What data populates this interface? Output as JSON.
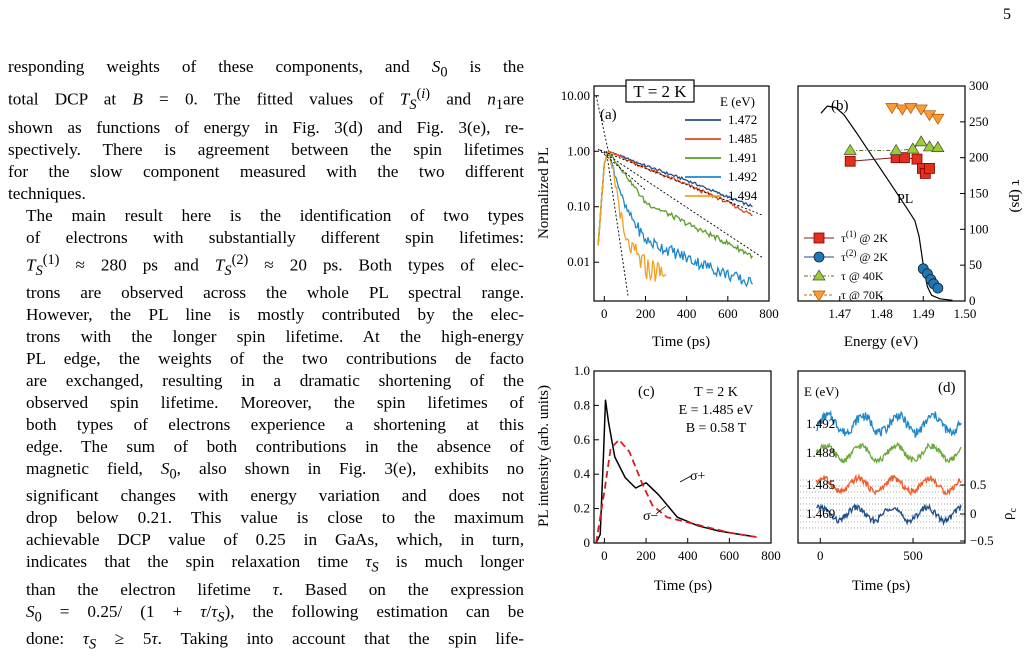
{
  "page_number": "5",
  "body_text": {
    "lines": [
      "responding weights of these components, and S0 is the",
      "total DCP at B = 0. The fitted values of T_S^(i) and n1 are",
      "shown as functions of energy in Fig. 3(d) and Fig. 3(e), re-",
      "spectively. There is agreement between the spin lifetimes",
      "for the slow component measured with the two different",
      "techniques.",
      "The main result here is the identification of two types",
      "of electrons with substantially different spin lifetimes:",
      "T_S^(1) ≈ 280 ps and T_S^(2) ≈ 20 ps. Both types of elec-",
      "trons are observed across the whole PL spectral range.",
      "However, the PL line is mostly contributed by the elec-",
      "trons with the longer spin lifetime. At the high-energy",
      "PL edge, the weights of the two contributions de facto",
      "are exchanged, resulting in a dramatic shortening of the",
      "observed spin lifetime. Moreover, the spin lifetimes of",
      "both types of electrons experience a shortening at this",
      "edge. The sum of both contributions in the absence of",
      "magnetic field, S0, also shown in Fig. 3(e), exhibits no",
      "significant changes with energy variation and does not",
      "drop below 0.21. This value is close to the maximum",
      "achievable DCP value of 0.25 in GaAs, which, in turn,",
      "indicates that the spin relaxation time τS is much longer",
      "than the electron lifetime τ. Based on the expression",
      "S0 = 0.25/(1 + τ/τS), the following estimation can be",
      "done: τS ≥ 5τ. Taking into account that the spin life-"
    ]
  },
  "figure": {
    "panel_a": {
      "label": "(a)",
      "boxed_label": "T = 2 K",
      "legend_title": "E (eV)",
      "xlabel": "Time (ps)",
      "ylabel": "Normalized PL",
      "xticks": [
        "0",
        "200",
        "400",
        "600",
        "800"
      ],
      "yticks": [
        "10.00",
        "1.00",
        "0.10",
        "0.01"
      ],
      "colors": {
        "1.472": "#1f4e8c",
        "1.485": "#e04a1a",
        "1.491": "#5a9e2a",
        "1.492": "#1f88c8",
        "1.494": "#f3a020"
      },
      "chart_data": {
        "type": "line",
        "x_unit": "ps",
        "y_scale": "log",
        "xlim": [
          -50,
          800
        ],
        "ylim": [
          0.002,
          15
        ],
        "series": [
          {
            "name": "1.472",
            "points": [
              [
                -30,
                0.02
              ],
              [
                0,
                0.6
              ],
              [
                20,
                1.0
              ],
              [
                200,
                0.55
              ],
              [
                400,
                0.3
              ],
              [
                600,
                0.15
              ],
              [
                720,
                0.1
              ]
            ]
          },
          {
            "name": "1.485",
            "points": [
              [
                -30,
                0.02
              ],
              [
                0,
                0.6
              ],
              [
                20,
                1.0
              ],
              [
                200,
                0.5
              ],
              [
                400,
                0.25
              ],
              [
                600,
                0.12
              ],
              [
                720,
                0.07
              ]
            ]
          },
          {
            "name": "1.491",
            "points": [
              [
                -30,
                0.02
              ],
              [
                0,
                0.6
              ],
              [
                20,
                1.0
              ],
              [
                200,
                0.12
              ],
              [
                400,
                0.05
              ],
              [
                600,
                0.022
              ],
              [
                720,
                0.013
              ]
            ]
          },
          {
            "name": "1.492",
            "points": [
              [
                -30,
                0.02
              ],
              [
                0,
                0.6
              ],
              [
                20,
                1.0
              ],
              [
                100,
                0.1
              ],
              [
                200,
                0.025
              ],
              [
                400,
                0.012
              ],
              [
                600,
                0.006
              ],
              [
                720,
                0.004
              ]
            ]
          },
          {
            "name": "1.494",
            "points": [
              [
                -30,
                0.02
              ],
              [
                0,
                0.6
              ],
              [
                20,
                1.0
              ],
              [
                60,
                0.2
              ],
              [
                100,
                0.025
              ],
              [
                200,
                0.008
              ],
              [
                300,
                0.006
              ]
            ]
          }
        ]
      }
    },
    "panel_b": {
      "label": "(b)",
      "pl_label": "PL",
      "xlabel": "Energy (eV)",
      "ylabel": "τ (ps)",
      "xticks": [
        "1.47",
        "1.48",
        "1.49",
        "1.50"
      ],
      "yticks": [
        "0",
        "50",
        "100",
        "150",
        "200",
        "250",
        "300"
      ],
      "legend": [
        {
          "sym": "τ",
          "sup": "(1)",
          "rest": " @ 2K",
          "color": "#e0301e",
          "marker": "square"
        },
        {
          "sym": "τ",
          "sup": "(2)",
          "rest": " @ 2K",
          "color": "#1f77b4",
          "marker": "circle"
        },
        {
          "sym": "τ",
          "sup": "",
          "rest": "  @ 40K",
          "color": "#9acd32",
          "marker": "triangle-up"
        },
        {
          "sym": "τ",
          "sup": "",
          "rest": "  @ 70K",
          "color": "#ff9933",
          "marker": "triangle-down"
        }
      ],
      "chart_data": {
        "type": "scatter",
        "xlim": [
          1.46,
          1.5
        ],
        "ylim": [
          0,
          300
        ],
        "series": [
          {
            "name": "τ(1) @ 2K",
            "x": [
              1.4725,
              1.4835,
              1.4855,
              1.4885,
              1.4898,
              1.4905,
              1.4915
            ],
            "y": [
              195,
              200,
              200,
              198,
              185,
              178,
              185
            ]
          },
          {
            "name": "τ(2) @ 2K",
            "x": [
              1.49,
              1.491,
              1.4918,
              1.4925,
              1.4935
            ],
            "y": [
              45,
              38,
              30,
              24,
              18
            ]
          },
          {
            "name": "τ @ 40K",
            "x": [
              1.4725,
              1.4835,
              1.4875,
              1.4895,
              1.4915,
              1.4935
            ],
            "y": [
              210,
              210,
              212,
              222,
              215,
              214
            ]
          },
          {
            "name": "τ @ 70K",
            "x": [
              1.4825,
              1.485,
              1.487,
              1.4895,
              1.4915,
              1.4935
            ],
            "y": [
              270,
              268,
              270,
              268,
              260,
              255
            ]
          },
          {
            "name": "PL",
            "x": [
              1.4655,
              1.467,
              1.469,
              1.471,
              1.474,
              1.478,
              1.482,
              1.486,
              1.488,
              1.489,
              1.49,
              1.491,
              1.492,
              1.494,
              1.497
            ],
            "y": [
              262,
              272,
              270,
              260,
              235,
              200,
              165,
              130,
              112,
              90,
              50,
              20,
              8,
              3,
              1
            ]
          }
        ]
      }
    },
    "panel_c": {
      "label": "(c)",
      "info": [
        "T = 2 K",
        "E = 1.485 eV",
        "B = 0.58 T"
      ],
      "sigma_plus": "σ+",
      "sigma_minus": "σ−",
      "xlabel": "Time (ps)",
      "ylabel": "PL intensity (arb. units)",
      "xticks": [
        "0",
        "200",
        "400",
        "600",
        "800"
      ],
      "yticks": [
        "0",
        "0.2",
        "0.4",
        "0.6",
        "0.8",
        "1.0"
      ],
      "chart_data": {
        "type": "line",
        "xlim": [
          -50,
          800
        ],
        "ylim": [
          0,
          1.0
        ],
        "series": [
          {
            "name": "σ+",
            "points": [
              [
                -40,
                0.0
              ],
              [
                -20,
                0.05
              ],
              [
                -5,
                0.5
              ],
              [
                5,
                0.83
              ],
              [
                20,
                0.7
              ],
              [
                50,
                0.5
              ],
              [
                100,
                0.38
              ],
              [
                150,
                0.32
              ],
              [
                200,
                0.35
              ],
              [
                260,
                0.28
              ],
              [
                350,
                0.15
              ],
              [
                450,
                0.1
              ],
              [
                550,
                0.07
              ],
              [
                650,
                0.05
              ],
              [
                730,
                0.035
              ]
            ]
          },
          {
            "name": "σ−",
            "points": [
              [
                -40,
                0.0
              ],
              [
                0,
                0.3
              ],
              [
                30,
                0.55
              ],
              [
                70,
                0.6
              ],
              [
                120,
                0.53
              ],
              [
                180,
                0.35
              ],
              [
                230,
                0.22
              ],
              [
                300,
                0.15
              ],
              [
                400,
                0.12
              ],
              [
                500,
                0.09
              ],
              [
                600,
                0.06
              ],
              [
                700,
                0.04
              ],
              [
                730,
                0.035
              ]
            ]
          }
        ]
      }
    },
    "panel_d": {
      "label": "(d)",
      "legend_title": "E (eV)",
      "energies": [
        "1.492",
        "1.488",
        "1.485",
        "1.469"
      ],
      "colors": [
        "#1f88c8",
        "#6aaa3a",
        "#f05a28",
        "#1f4e8c"
      ],
      "xlabel": "Time (ps)",
      "ylabel": "ρc",
      "xticks": [
        "0",
        "500"
      ],
      "yticks_right": [
        "0.5",
        "0",
        "−0.5"
      ],
      "chart_data": {
        "type": "line",
        "note_axis": "ρc",
        "xlim": [
          -120,
          780
        ],
        "ylim": [
          -0.5,
          0.5
        ],
        "series": [
          {
            "name": "1.492",
            "period_ps": 190,
            "amplitude": 0.15
          },
          {
            "name": "1.488",
            "period_ps": 190,
            "amplitude": 0.13
          },
          {
            "name": "1.485",
            "period_ps": 190,
            "amplitude": 0.12
          },
          {
            "name": "1.469",
            "period_ps": 190,
            "amplitude": 0.12
          }
        ]
      }
    }
  }
}
